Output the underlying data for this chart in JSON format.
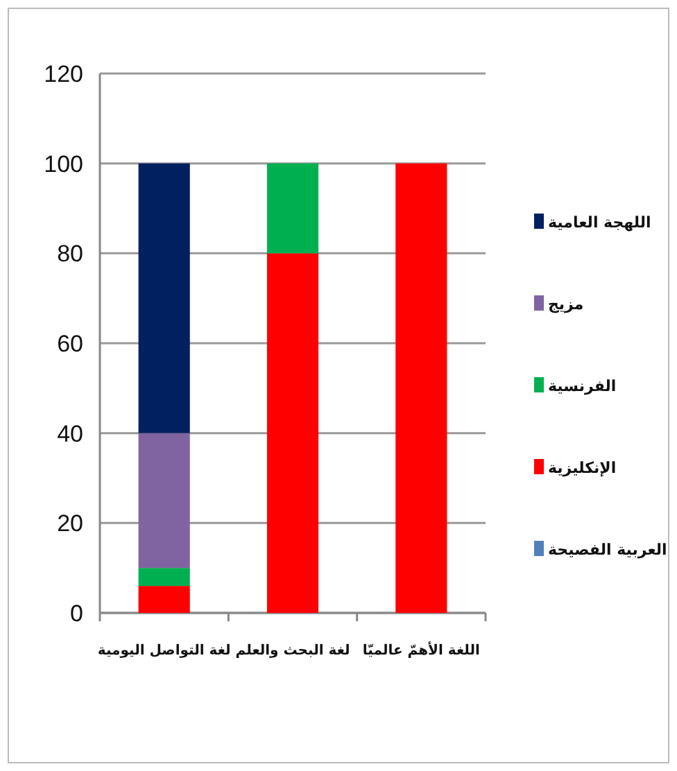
{
  "chart_data": {
    "type": "bar",
    "stacked": true,
    "categories": [
      "لغة التواصل اليومية",
      "لغة البحث والعلم",
      "اللغة الأهمّ عالميّا"
    ],
    "series": [
      {
        "name": "العربية الفصيحة",
        "color": "#4f81bd",
        "values": [
          0,
          0,
          0
        ]
      },
      {
        "name": "الإنكليزية",
        "color": "#ff0000",
        "values": [
          6,
          80,
          100
        ]
      },
      {
        "name": "الفرنسية",
        "color": "#00b050",
        "values": [
          4,
          20,
          0
        ]
      },
      {
        "name": "مزيج",
        "color": "#8064a2",
        "values": [
          30,
          0,
          0
        ]
      },
      {
        "name": "اللهجة العامية",
        "color": "#002060",
        "values": [
          60,
          0,
          0
        ]
      }
    ],
    "ylim": [
      0,
      120
    ],
    "yticks": [
      0,
      20,
      40,
      60,
      80,
      100,
      120
    ],
    "grid": "y",
    "legend": "right"
  }
}
